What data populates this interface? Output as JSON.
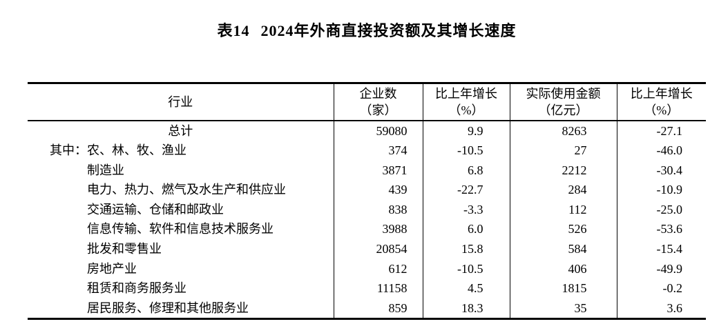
{
  "page": {
    "background_color": "#ffffff",
    "text_color": "#000000"
  },
  "title": {
    "table_no": "表14",
    "text": "2024年外商直接投资额及其增长速度"
  },
  "table": {
    "headers": [
      {
        "line1": "行业",
        "line2": ""
      },
      {
        "line1": "企业数",
        "line2": "（家）"
      },
      {
        "line1": "比上年增长",
        "line2": "（%）"
      },
      {
        "line1": "实际使用金额",
        "line2": "（亿元）"
      },
      {
        "line1": "比上年增长",
        "line2": "（%）"
      }
    ],
    "rows": [
      {
        "layout": "center",
        "prefix": "",
        "industry": "总计",
        "enterprises": "59080",
        "growth1": "9.9",
        "amount": "8263",
        "growth2": "-27.1"
      },
      {
        "layout": "prefix",
        "prefix": "其中：",
        "industry": "农、林、牧、渔业",
        "enterprises": "374",
        "growth1": "-10.5",
        "amount": "27",
        "growth2": "-46.0"
      },
      {
        "layout": "indent",
        "prefix": "",
        "industry": "制造业",
        "enterprises": "3871",
        "growth1": "6.8",
        "amount": "2212",
        "growth2": "-30.4"
      },
      {
        "layout": "indent",
        "prefix": "",
        "industry": "电力、热力、燃气及水生产和供应业",
        "enterprises": "439",
        "growth1": "-22.7",
        "amount": "284",
        "growth2": "-10.9"
      },
      {
        "layout": "indent",
        "prefix": "",
        "industry": "交通运输、仓储和邮政业",
        "enterprises": "838",
        "growth1": "-3.3",
        "amount": "112",
        "growth2": "-25.0"
      },
      {
        "layout": "indent",
        "prefix": "",
        "industry": "信息传输、软件和信息技术服务业",
        "enterprises": "3988",
        "growth1": "6.0",
        "amount": "526",
        "growth2": "-53.6"
      },
      {
        "layout": "indent",
        "prefix": "",
        "industry": "批发和零售业",
        "enterprises": "20854",
        "growth1": "15.8",
        "amount": "584",
        "growth2": "-15.4"
      },
      {
        "layout": "indent",
        "prefix": "",
        "industry": "房地产业",
        "enterprises": "612",
        "growth1": "-10.5",
        "amount": "406",
        "growth2": "-49.9"
      },
      {
        "layout": "indent",
        "prefix": "",
        "industry": "租赁和商务服务业",
        "enterprises": "11158",
        "growth1": "4.5",
        "amount": "1815",
        "growth2": "-0.2"
      },
      {
        "layout": "indent",
        "prefix": "",
        "industry": "居民服务、修理和其他服务业",
        "enterprises": "859",
        "growth1": "18.3",
        "amount": "35",
        "growth2": "3.6"
      }
    ]
  }
}
